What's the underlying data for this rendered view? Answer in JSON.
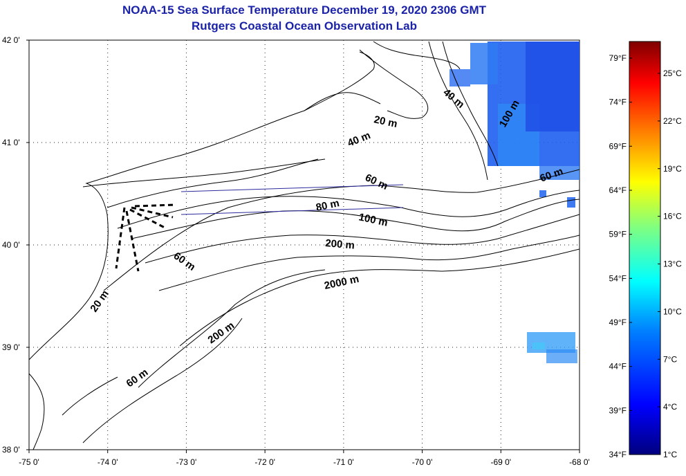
{
  "title": "NOAA-15 Sea Surface Temperature December 19, 2020 2306 GMT",
  "subtitle": "Rutgers Coastal Ocean Observation Lab",
  "map": {
    "lon_ticks": [
      "-75 0'",
      "-74 0'",
      "-73 0'",
      "-72 0'",
      "-71 0'",
      "-70 0'",
      "-69 0'",
      "-68 0'"
    ],
    "lat_ticks": [
      "42 0'",
      "41 0'",
      "40 0'",
      "39 0'",
      "38 0'"
    ],
    "lon_range": [
      -75,
      -68
    ],
    "lat_range": [
      38,
      42
    ],
    "contour_labels": [
      "20 m",
      "40 m",
      "60 m",
      "80 m",
      "100 m",
      "200 m",
      "2000 m",
      "60 m",
      "20 m",
      "60 m",
      "200 m",
      "40 m",
      "100 m",
      "60 m"
    ],
    "colors": {
      "contour": "#000000",
      "transect": "#2a2a9c",
      "grid_dots": "#222222",
      "title": "#1a22a8"
    }
  },
  "colorbar": {
    "fahrenheit": [
      "79°F",
      "74°F",
      "69°F",
      "64°F",
      "59°F",
      "54°F",
      "49°F",
      "44°F",
      "39°F",
      "34°F"
    ],
    "celsius": [
      "25°C",
      "22°C",
      "19°C",
      "16°C",
      "13°C",
      "10°C",
      "7°C",
      "4°C",
      "1°C"
    ],
    "gradient": [
      "#00007f",
      "#0000ff",
      "#0080ff",
      "#00ffff",
      "#80ff80",
      "#ffff00",
      "#ff8000",
      "#ff0000",
      "#7f0000"
    ]
  }
}
